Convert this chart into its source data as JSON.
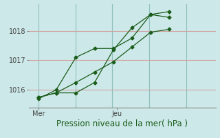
{
  "title": "Pression niveau de la mer( hPa )",
  "background_color": "#cce8e8",
  "line_color": "#1a5c1a",
  "grid_color_h": "#d4a0a0",
  "grid_color_v": "#90bebe",
  "ylim": [
    1015.4,
    1018.9
  ],
  "yticks": [
    1016,
    1017,
    1018
  ],
  "xlim": [
    0,
    9.5
  ],
  "xtick_positions": [
    0.5,
    4.5
  ],
  "xtick_labels": [
    "Mer",
    "Jeu"
  ],
  "vgrid_x": [
    0.5,
    2.375,
    4.25,
    6.125,
    8.0
  ],
  "line1_x": [
    0.5,
    1.4,
    2.4,
    3.35,
    4.3,
    5.25,
    6.2,
    7.15
  ],
  "line1_y": [
    1015.7,
    1016.0,
    1017.1,
    1017.4,
    1017.4,
    1017.75,
    1018.55,
    1018.45
  ],
  "line2_x": [
    0.5,
    1.4,
    2.4,
    3.35,
    4.3,
    5.25,
    6.2,
    7.15
  ],
  "line2_y": [
    1015.75,
    1015.9,
    1015.9,
    1016.25,
    1017.35,
    1018.1,
    1018.55,
    1018.65
  ],
  "line3_x": [
    0.5,
    1.4,
    2.4,
    3.35,
    4.3,
    5.25,
    6.2,
    7.15
  ],
  "line3_y": [
    1015.75,
    1015.9,
    1016.25,
    1016.6,
    1016.95,
    1017.45,
    1017.95,
    1018.05
  ],
  "xlabel_fontsize": 8.5,
  "ytick_fontsize": 7,
  "xtick_fontsize": 7
}
